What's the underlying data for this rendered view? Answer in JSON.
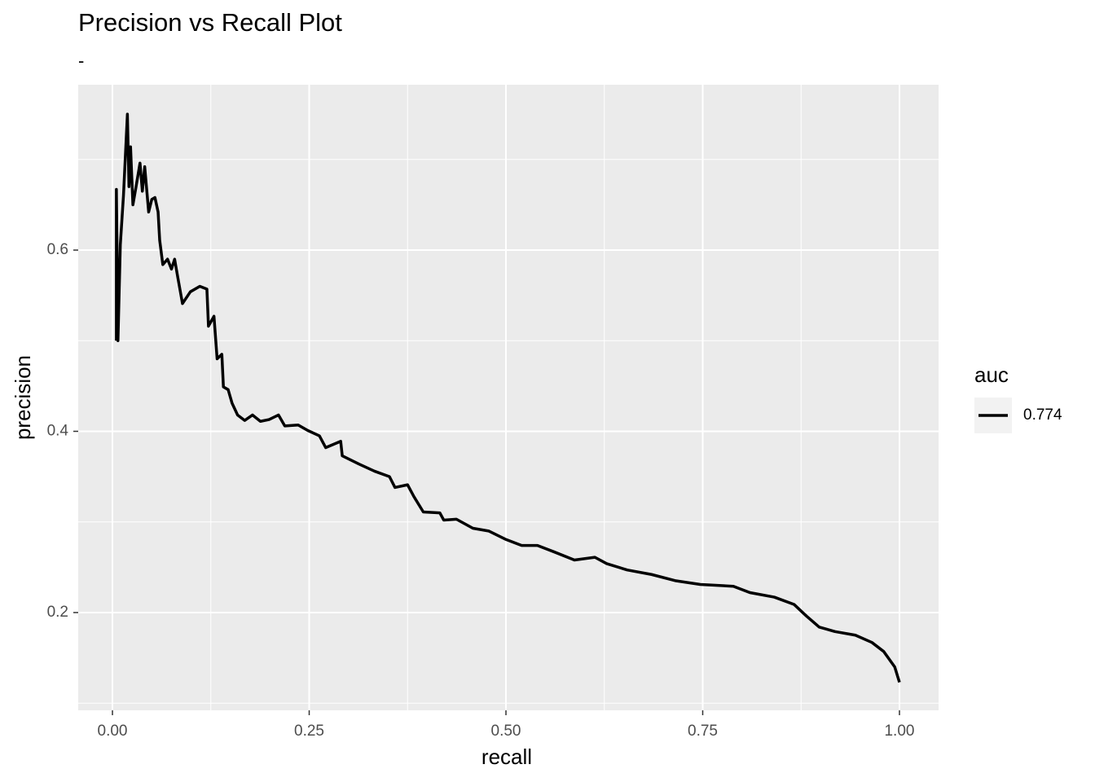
{
  "chart_data": {
    "type": "line",
    "title": "Precision vs Recall Plot",
    "subtitle": "-",
    "x_label": "recall",
    "y_label": "precision",
    "legend_title": "auc",
    "legend_position": "right",
    "grid": true,
    "xlim": [
      -0.0435,
      1.0497
    ],
    "ylim": [
      0.0921,
      0.7825
    ],
    "xticks": [
      {
        "value": 0,
        "label": "0.00"
      },
      {
        "value": 0.25,
        "label": "0.25"
      },
      {
        "value": 0.5,
        "label": "0.50"
      },
      {
        "value": 0.75,
        "label": "0.75"
      },
      {
        "value": 1,
        "label": "1.00"
      }
    ],
    "yticks": [
      0.2,
      0.4,
      0.6
    ],
    "x_minor_grid": [
      0.125,
      0.375,
      0.625,
      0.875
    ],
    "y_minor_grid": [
      0.1,
      0.3,
      0.5,
      0.7
    ],
    "x": [
      0.005,
      0.005,
      0.007,
      0.01,
      0.014,
      0.019,
      0.021,
      0.023,
      0.026,
      0.03,
      0.035,
      0.038,
      0.041,
      0.046,
      0.05,
      0.054,
      0.058,
      0.06,
      0.064,
      0.07,
      0.075,
      0.079,
      0.083,
      0.089,
      0.099,
      0.111,
      0.12,
      0.122,
      0.129,
      0.133,
      0.139,
      0.141,
      0.147,
      0.152,
      0.159,
      0.168,
      0.178,
      0.188,
      0.199,
      0.211,
      0.219,
      0.236,
      0.248,
      0.263,
      0.271,
      0.29,
      0.292,
      0.313,
      0.333,
      0.352,
      0.359,
      0.375,
      0.383,
      0.395,
      0.416,
      0.421,
      0.437,
      0.458,
      0.478,
      0.499,
      0.52,
      0.54,
      0.561,
      0.587,
      0.613,
      0.628,
      0.654,
      0.685,
      0.716,
      0.747,
      0.789,
      0.81,
      0.841,
      0.866,
      0.882,
      0.898,
      0.918,
      0.944,
      0.965,
      0.98,
      0.994,
      1.0
    ],
    "series": [
      {
        "name": "0.774",
        "color": "#000000",
        "values": [
          0.5,
          0.667,
          0.5,
          0.606,
          0.66,
          0.75,
          0.67,
          0.714,
          0.65,
          0.67,
          0.696,
          0.665,
          0.692,
          0.642,
          0.656,
          0.658,
          0.642,
          0.611,
          0.584,
          0.59,
          0.579,
          0.59,
          0.57,
          0.541,
          0.554,
          0.56,
          0.557,
          0.516,
          0.527,
          0.48,
          0.485,
          0.449,
          0.446,
          0.431,
          0.418,
          0.412,
          0.418,
          0.411,
          0.413,
          0.418,
          0.406,
          0.407,
          0.401,
          0.395,
          0.382,
          0.389,
          0.373,
          0.364,
          0.356,
          0.35,
          0.338,
          0.341,
          0.328,
          0.311,
          0.31,
          0.302,
          0.303,
          0.293,
          0.29,
          0.281,
          0.274,
          0.274,
          0.267,
          0.258,
          0.261,
          0.254,
          0.247,
          0.242,
          0.235,
          0.231,
          0.229,
          0.222,
          0.217,
          0.209,
          0.196,
          0.184,
          0.179,
          0.175,
          0.167,
          0.157,
          0.14,
          0.123
        ]
      }
    ]
  }
}
